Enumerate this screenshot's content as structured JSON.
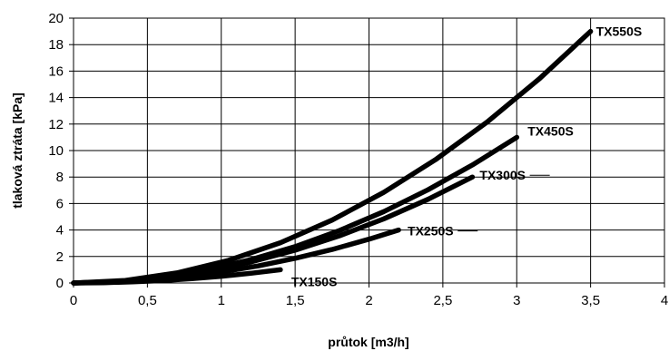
{
  "chart_data": {
    "type": "line",
    "xlabel": "průtok [m3/h]",
    "ylabel": "tlaková ztráta [kPa]",
    "xlim": [
      0,
      4
    ],
    "ylim": [
      0,
      20
    ],
    "grid": true,
    "x_ticks": [
      "0",
      "0,5",
      "1",
      "1,5",
      "2",
      "2,5",
      "3",
      "3,5",
      "4"
    ],
    "y_ticks": [
      "0",
      "2",
      "4",
      "6",
      "8",
      "10",
      "12",
      "14",
      "16",
      "18",
      "20"
    ],
    "series": [
      {
        "name": "TX150S",
        "x": [
          0,
          0.2,
          0.4,
          0.6,
          0.8,
          1.0,
          1.2,
          1.4
        ],
        "y": [
          0,
          0.02,
          0.08,
          0.18,
          0.33,
          0.51,
          0.73,
          1.0
        ]
      },
      {
        "name": "TX250S",
        "x": [
          0,
          0.25,
          0.5,
          0.75,
          1.0,
          1.25,
          1.5,
          1.75,
          2.0,
          2.2
        ],
        "y": [
          0,
          0.05,
          0.21,
          0.46,
          0.83,
          1.29,
          1.86,
          2.53,
          3.31,
          4.0
        ]
      },
      {
        "name": "TX300S",
        "x": [
          0,
          0.3,
          0.6,
          0.9,
          1.2,
          1.5,
          1.8,
          2.1,
          2.4,
          2.7
        ],
        "y": [
          0,
          0.1,
          0.4,
          0.89,
          1.58,
          2.47,
          3.56,
          4.84,
          6.32,
          8.0
        ]
      },
      {
        "name": "TX450S",
        "x": [
          0,
          0.3,
          0.6,
          0.9,
          1.2,
          1.5,
          1.8,
          2.1,
          2.4,
          2.7,
          3.0
        ],
        "y": [
          0,
          0.11,
          0.44,
          0.99,
          1.76,
          2.75,
          3.96,
          5.39,
          7.04,
          8.91,
          11.0
        ]
      },
      {
        "name": "TX550S",
        "x": [
          0,
          0.35,
          0.7,
          1.05,
          1.4,
          1.75,
          2.1,
          2.45,
          2.8,
          3.15,
          3.5
        ],
        "y": [
          0,
          0.19,
          0.76,
          1.71,
          3.04,
          4.75,
          6.84,
          9.31,
          12.16,
          15.39,
          19.0
        ]
      }
    ]
  }
}
